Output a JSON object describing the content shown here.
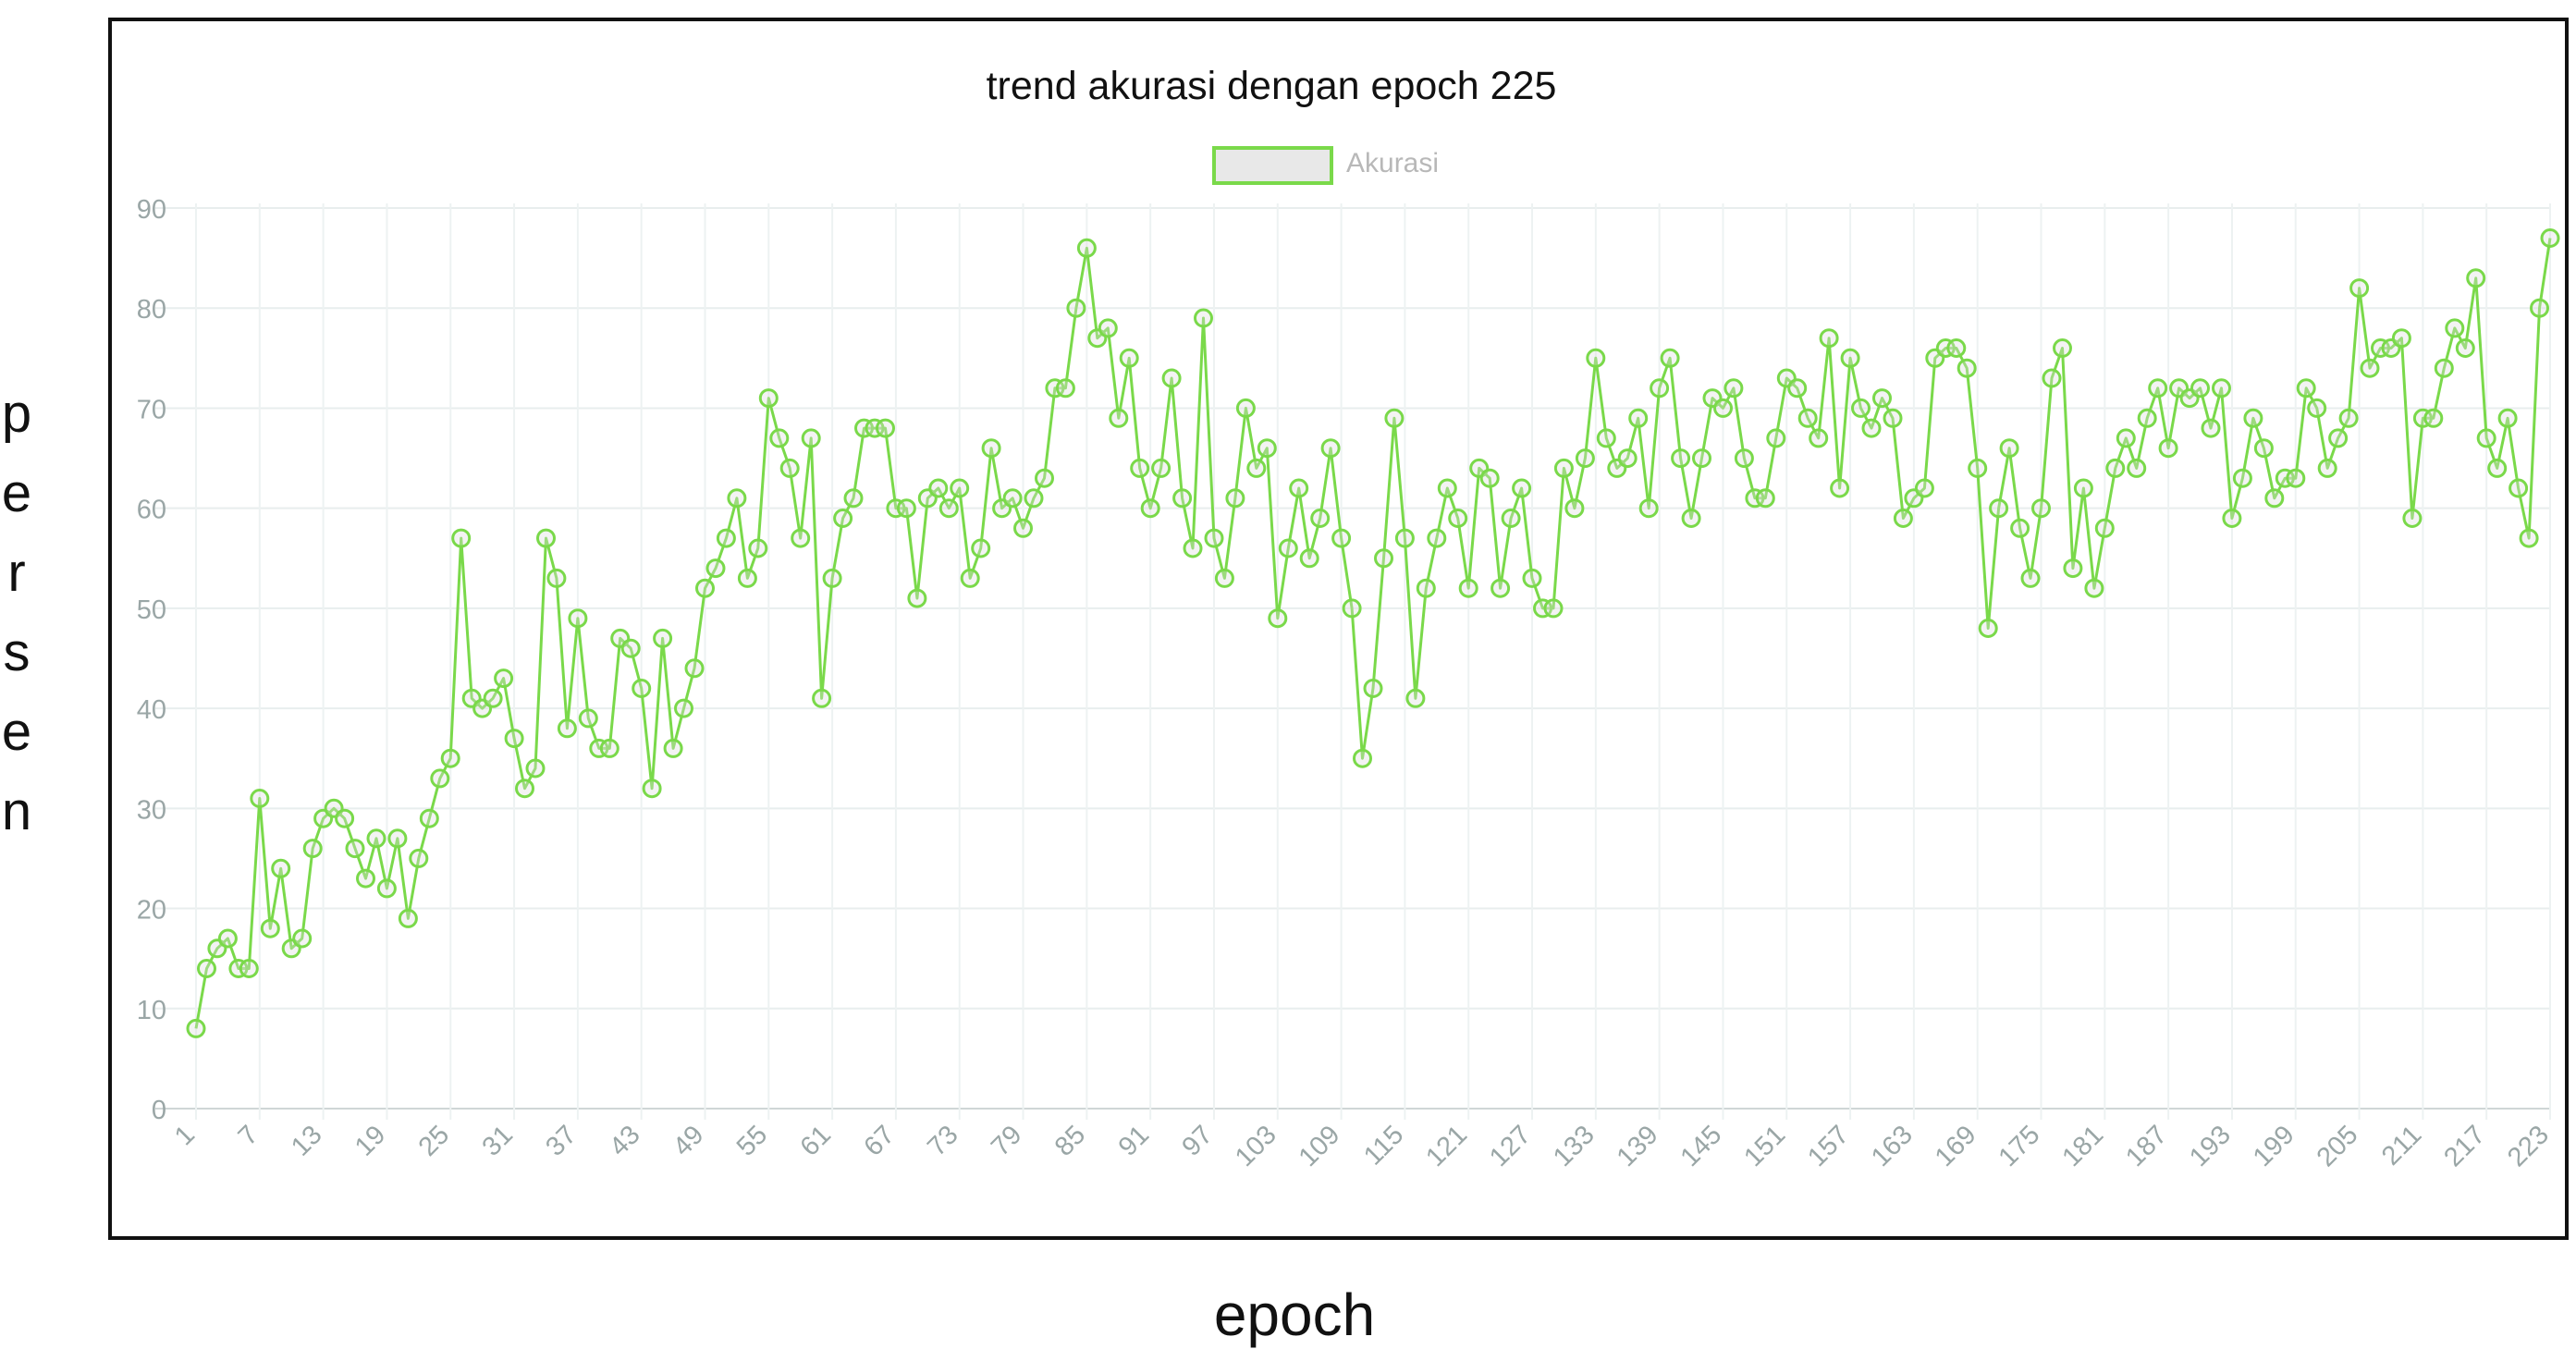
{
  "chart_data": {
    "type": "line",
    "title": "trend akurasi dengan epoch 225",
    "xlabel": "epoch",
    "ylabel": "persen",
    "legend": {
      "label": "Akurasi",
      "position": "top-center"
    },
    "color": "#7ad94a",
    "grid": true,
    "ylim": [
      0,
      90
    ],
    "yticks": [
      0,
      10,
      20,
      30,
      40,
      50,
      60,
      70,
      80,
      90
    ],
    "xtick_labels": [
      "1",
      "7",
      "13",
      "19",
      "25",
      "31",
      "37",
      "43",
      "49",
      "55",
      "61",
      "67",
      "73",
      "79",
      "85",
      "91",
      "97",
      "103",
      "109",
      "115",
      "121",
      "127",
      "133",
      "139",
      "145",
      "151",
      "157",
      "163",
      "169",
      "175",
      "181",
      "187",
      "193",
      "199",
      "205",
      "211",
      "217",
      "223"
    ],
    "x_start": 1,
    "x_end": 225,
    "series": [
      {
        "name": "Akurasi",
        "values": [
          8,
          14,
          16,
          17,
          14,
          14,
          31,
          18,
          24,
          16,
          17,
          26,
          29,
          30,
          29,
          26,
          23,
          27,
          22,
          27,
          19,
          25,
          29,
          33,
          35,
          57,
          41,
          40,
          41,
          43,
          37,
          32,
          34,
          57,
          53,
          38,
          49,
          39,
          36,
          36,
          47,
          46,
          42,
          32,
          47,
          36,
          40,
          44,
          52,
          54,
          57,
          61,
          53,
          56,
          71,
          67,
          64,
          57,
          67,
          41,
          53,
          59,
          61,
          68,
          68,
          68,
          60,
          60,
          51,
          61,
          62,
          60,
          62,
          53,
          56,
          66,
          60,
          61,
          58,
          61,
          63,
          72,
          72,
          80,
          86,
          77,
          78,
          69,
          75,
          64,
          60,
          64,
          73,
          61,
          56,
          79,
          57,
          53,
          61,
          70,
          64,
          66,
          49,
          56,
          62,
          55,
          59,
          66,
          57,
          50,
          35,
          42,
          55,
          69,
          57,
          41,
          52,
          57,
          62,
          59,
          52,
          64,
          63,
          52,
          59,
          62,
          53,
          50,
          50,
          64,
          60,
          65,
          75,
          67,
          64,
          65,
          69,
          60,
          72,
          75,
          65,
          59,
          65,
          71,
          70,
          72,
          65,
          61,
          61,
          67,
          73,
          72,
          69,
          67,
          77,
          62,
          75,
          70,
          68,
          71,
          69,
          59,
          61,
          62,
          75,
          76,
          76,
          74,
          64,
          48,
          60,
          66,
          58,
          53,
          60,
          73,
          76,
          54,
          62,
          52,
          58,
          64,
          67,
          64,
          69,
          72,
          66,
          72,
          71,
          72,
          68,
          72,
          59,
          63,
          69,
          66,
          61,
          63,
          63,
          72,
          70,
          64,
          67,
          69,
          82,
          74,
          76,
          76,
          77,
          59,
          69,
          69,
          74,
          78,
          76,
          83,
          67,
          64,
          69,
          62,
          57,
          80,
          87
        ]
      }
    ]
  }
}
